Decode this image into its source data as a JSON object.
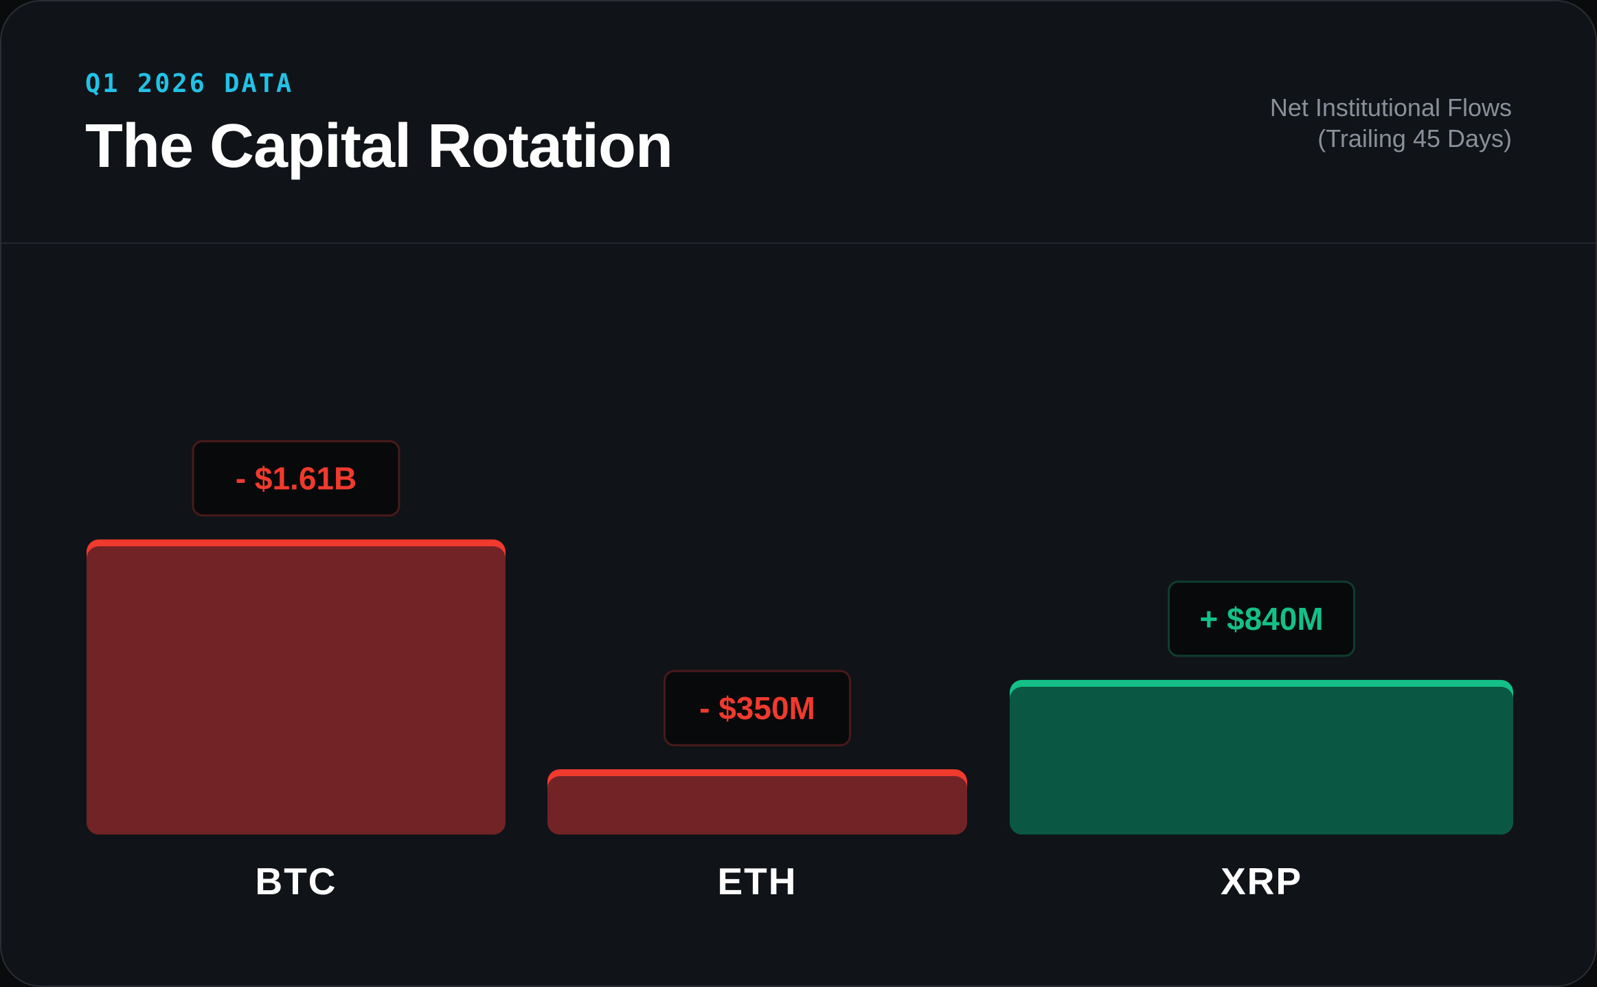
{
  "header": {
    "kicker": "Q1 2026 DATA",
    "title": "The Capital Rotation",
    "subtitle_line1": "Net Institutional Flows",
    "subtitle_line2": "(Trailing 45 Days)"
  },
  "colors": {
    "negative_fill": "#722325",
    "negative_accent": "#f03a2e",
    "positive_fill": "#0a5844",
    "positive_accent": "#13c088",
    "negative_badge_border": "#4a1a1a",
    "positive_badge_border": "#0f3d30"
  },
  "chart_data": {
    "type": "bar",
    "categories": [
      "BTC",
      "ETH",
      "XRP"
    ],
    "values": [
      -1610,
      -350,
      840
    ],
    "unit": "USD millions",
    "data_labels": [
      "- $1.61B",
      "- $350M",
      "+ $840M"
    ],
    "bar_heights_encode": "magnitude",
    "grid": false,
    "legend": "none"
  }
}
